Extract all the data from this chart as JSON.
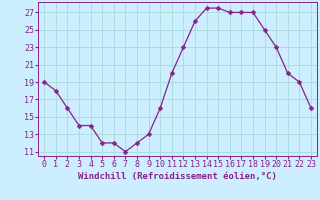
{
  "x": [
    0,
    1,
    2,
    3,
    4,
    5,
    6,
    7,
    8,
    9,
    10,
    11,
    12,
    13,
    14,
    15,
    16,
    17,
    18,
    19,
    20,
    21,
    22,
    23
  ],
  "y": [
    19,
    18,
    16,
    14,
    14,
    12,
    12,
    11,
    12,
    13,
    16,
    20,
    23,
    26,
    27.5,
    27.5,
    27,
    27,
    27,
    25,
    23,
    20,
    19,
    16
  ],
  "line_color": "#882288",
  "marker": "D",
  "marker_size": 2.5,
  "bg_color": "#cceeff",
  "grid_color": "#aadddd",
  "xlabel": "Windchill (Refroidissement éolien,°C)",
  "xlabel_fontsize": 6.5,
  "tick_fontsize": 6.0,
  "ylim": [
    10.5,
    28.2
  ],
  "yticks": [
    11,
    13,
    15,
    17,
    19,
    21,
    23,
    25,
    27
  ],
  "xlim": [
    -0.5,
    23.5
  ],
  "xticks": [
    0,
    1,
    2,
    3,
    4,
    5,
    6,
    7,
    8,
    9,
    10,
    11,
    12,
    13,
    14,
    15,
    16,
    17,
    18,
    19,
    20,
    21,
    22,
    23
  ]
}
